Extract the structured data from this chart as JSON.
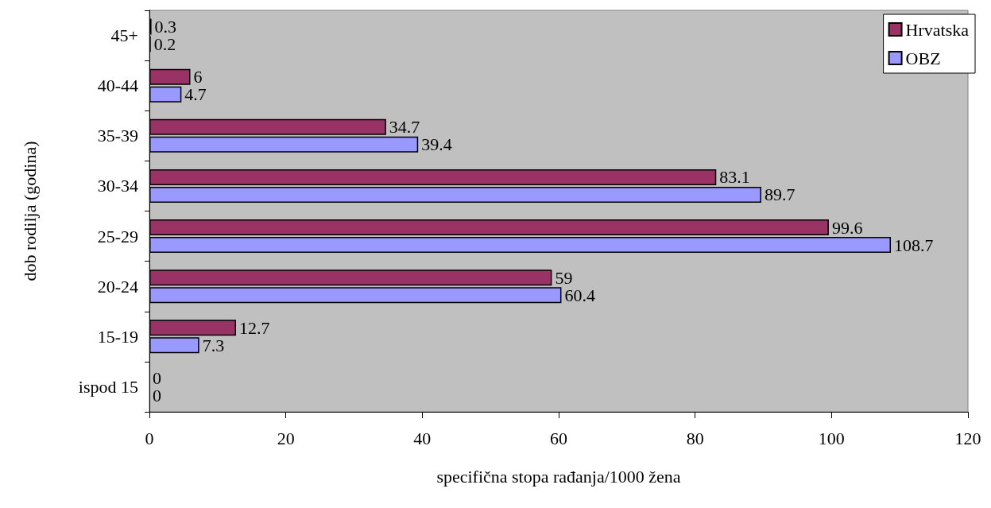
{
  "chart_data": {
    "type": "bar",
    "orientation": "horizontal",
    "xlabel": "specifična stopa rađanja/1000 žena",
    "ylabel": "dob rodilja (godina)",
    "categories": [
      "45+",
      "40-44",
      "35-39",
      "30-34",
      "25-29",
      "20-24",
      "15-19",
      "ispod 15"
    ],
    "series": [
      {
        "name": "Hrvatska",
        "color": "#993366",
        "values": [
          0.3,
          6,
          34.7,
          83.1,
          99.6,
          59,
          12.7,
          0
        ]
      },
      {
        "name": "OBZ",
        "color": "#9999ff",
        "values": [
          0.2,
          4.7,
          39.4,
          89.7,
          108.7,
          60.4,
          7.3,
          0
        ]
      }
    ],
    "xlim": [
      0,
      120
    ],
    "xticks": [
      0,
      20,
      40,
      60,
      80,
      100,
      120
    ],
    "data_labels": true,
    "grid": false,
    "legend": "top right"
  }
}
